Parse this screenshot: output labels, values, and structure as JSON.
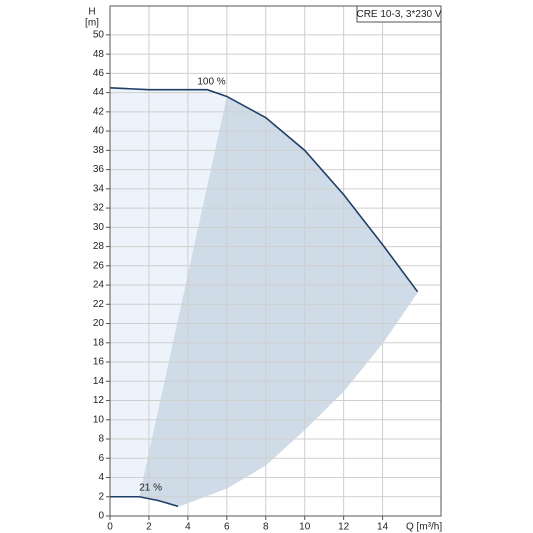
{
  "chart_data": {
    "type": "line",
    "title": "CRE 10-3, 3*230 V",
    "y_label": "H",
    "y_unit": "[m]",
    "x_label": "Q [m³/h]",
    "xlim": [
      0,
      17
    ],
    "ylim": [
      0,
      53
    ],
    "xticks": [
      0,
      2,
      4,
      6,
      8,
      10,
      12,
      14
    ],
    "yticks": [
      0,
      2,
      4,
      6,
      8,
      10,
      12,
      14,
      16,
      18,
      20,
      22,
      24,
      26,
      28,
      30,
      32,
      34,
      36,
      38,
      40,
      42,
      44,
      46,
      48,
      50
    ],
    "grid": true,
    "series": [
      {
        "name": "100 %",
        "color": "#1f3f66",
        "x": [
          0,
          2,
          5,
          6,
          8,
          10,
          12,
          14,
          15.8
        ],
        "values": [
          44.5,
          44.3,
          44.3,
          43.6,
          41.4,
          38,
          33.4,
          28.2,
          23.3
        ]
      },
      {
        "name": "21 %",
        "color": "#1f3f66",
        "x": [
          0,
          1.5,
          2.5,
          3.5
        ],
        "values": [
          2,
          2,
          1.6,
          1
        ]
      },
      {
        "color": "#cfdbe6",
        "x": [
          3.5,
          6,
          8,
          10,
          12,
          14,
          15.8
        ],
        "values": [
          1,
          2.9,
          5.3,
          9,
          13,
          18,
          23.3
        ]
      }
    ]
  }
}
